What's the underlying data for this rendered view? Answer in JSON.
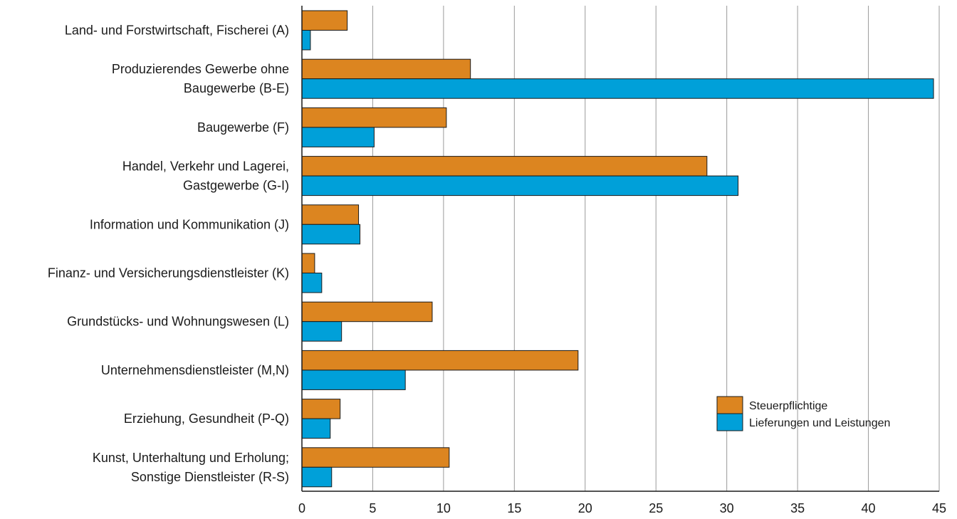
{
  "chart_data": {
    "type": "bar",
    "orientation": "horizontal",
    "categories": [
      [
        "Land- und Forstwirtschaft, Fischerei (A)"
      ],
      [
        "Produzierendes Gewerbe ohne",
        "Baugewerbe (B-E)"
      ],
      [
        "Baugewerbe (F)"
      ],
      [
        "Handel, Verkehr und Lagerei,",
        "Gastgewerbe (G-I)"
      ],
      [
        "Information und Kommunikation (J)"
      ],
      [
        "Finanz- und Versicherungsdienstleister (K)"
      ],
      [
        "Grundstücks- und Wohnungswesen (L)"
      ],
      [
        "Unternehmensdienstleister (M,N)"
      ],
      [
        "Erziehung, Gesundheit (P-Q)"
      ],
      [
        "Kunst, Unterhaltung und Erholung;",
        "Sonstige Dienstleister (R-S)"
      ]
    ],
    "series": [
      {
        "name": "Steuerpflichtige",
        "color": "#dc8520",
        "values": [
          3.2,
          11.9,
          10.2,
          28.6,
          4.0,
          0.9,
          9.2,
          19.5,
          2.7,
          10.4
        ]
      },
      {
        "name": "Lieferungen und Leistungen",
        "color": "#00a0d9",
        "values": [
          0.6,
          44.6,
          5.1,
          30.8,
          4.1,
          1.4,
          2.8,
          7.3,
          2.0,
          2.1
        ]
      }
    ],
    "xlim": [
      0,
      45
    ],
    "xticks": [
      "0",
      "5",
      "10",
      "15",
      "20",
      "25",
      "30",
      "35",
      "40",
      "45"
    ],
    "grid": "vertical",
    "legend_position": "bottom-right",
    "title": "",
    "xlabel": "",
    "ylabel": ""
  }
}
